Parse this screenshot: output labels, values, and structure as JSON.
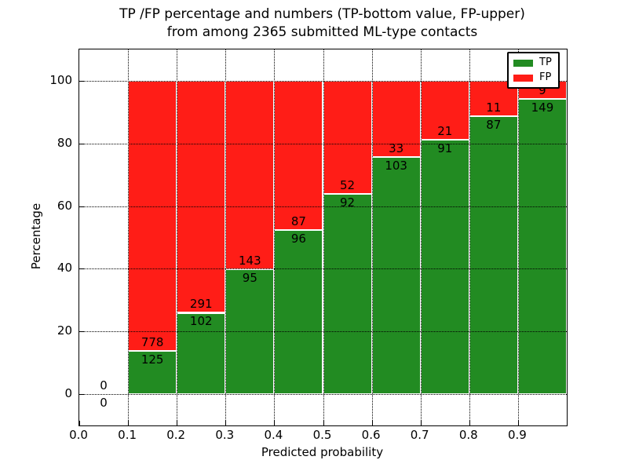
{
  "title": {
    "line1": "TP /FP percentage and numbers (TP-bottom value, FP-upper)",
    "line2": "from among 2365 submitted ML-type contacts"
  },
  "axes": {
    "xlabel": "Predicted probability",
    "ylabel": "Percentage",
    "x_ticks": [
      {
        "label": "0.0",
        "value": 0.0
      },
      {
        "label": "0.1",
        "value": 0.1
      },
      {
        "label": "0.2",
        "value": 0.2
      },
      {
        "label": "0.3",
        "value": 0.3
      },
      {
        "label": "0.4",
        "value": 0.4
      },
      {
        "label": "0.5",
        "value": 0.5
      },
      {
        "label": "0.6",
        "value": 0.6
      },
      {
        "label": "0.7",
        "value": 0.7
      },
      {
        "label": "0.8",
        "value": 0.8
      },
      {
        "label": "0.9",
        "value": 0.9
      }
    ],
    "y_ticks": [
      {
        "label": "0",
        "value": 0
      },
      {
        "label": "20",
        "value": 20
      },
      {
        "label": "40",
        "value": 40
      },
      {
        "label": "60",
        "value": 60
      },
      {
        "label": "80",
        "value": 80
      },
      {
        "label": "100",
        "value": 100
      }
    ]
  },
  "legend": {
    "entries": [
      {
        "label": "TP",
        "color": "#228b22"
      },
      {
        "label": "FP",
        "color": "#ff1d17"
      }
    ]
  },
  "chart_data": {
    "type": "bar",
    "stacked": true,
    "title": "TP /FP percentage and numbers (TP-bottom value, FP-upper) from among 2365 submitted ML-type contacts",
    "xlabel": "Predicted probability",
    "ylabel": "Percentage",
    "xlim": [
      0,
      1
    ],
    "ylim": [
      -10,
      110
    ],
    "grid": true,
    "legend_position": "upper right",
    "total_contacts": 2365,
    "bin_edges": [
      0.0,
      0.1,
      0.2,
      0.3,
      0.4,
      0.5,
      0.6,
      0.7,
      0.8,
      0.9,
      1.0
    ],
    "series": [
      {
        "name": "TP",
        "color": "#228b22",
        "counts": [
          0,
          125,
          102,
          95,
          96,
          92,
          103,
          91,
          87,
          149
        ]
      },
      {
        "name": "FP",
        "color": "#ff1d17",
        "counts": [
          0,
          778,
          291,
          143,
          87,
          52,
          33,
          21,
          11,
          9
        ]
      }
    ],
    "note": "bar heights are within-bin percentages TP/(TP+FP) and FP/(TP+FP); bar annotations show raw counts (TP below boundary, FP above)"
  }
}
